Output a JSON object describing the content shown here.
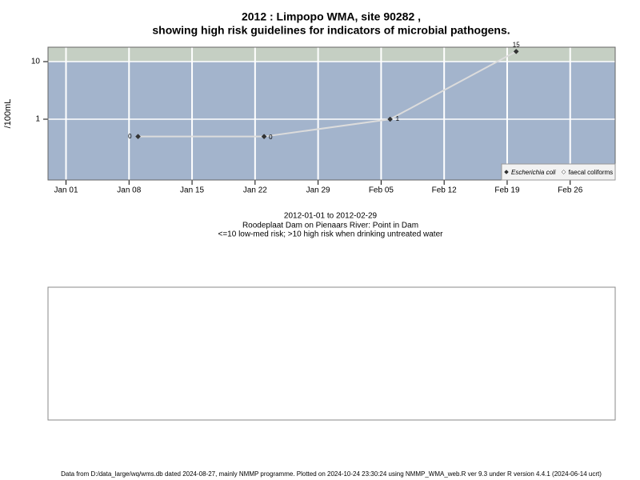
{
  "chart_data": {
    "type": "line",
    "title": "2012 : Limpopo WMA, site 90282 ,",
    "subtitle": "showing high risk guidelines for indicators of microbial pathogens.",
    "ylabel": "/100mL",
    "log_y": true,
    "grid": true,
    "threshold": 10,
    "threshold_color": "#c5cfc3",
    "background_color": "#a3b4cc",
    "line_color": "#dcdcdc",
    "legend": "lower right",
    "x": [
      "2012-01-09",
      "2012-01-23",
      "2012-02-06",
      "2012-02-20"
    ],
    "series": [
      {
        "name": "Escherichia coli",
        "color": "#333333",
        "values": [
          0.5,
          0.5,
          1,
          15
        ],
        "value_labels": [
          "0",
          "0",
          "1",
          "15"
        ]
      },
      {
        "name": "faecal coliforms",
        "color": "#ffffff",
        "values": [
          null,
          null,
          null,
          null
        ]
      }
    ],
    "xlim": [
      "2011-12-30",
      "2012-03-02"
    ],
    "xticks": [
      {
        "value": "2012-01-01",
        "label": "Jan 01"
      },
      {
        "value": "2012-01-08",
        "label": "Jan 08"
      },
      {
        "value": "2012-01-15",
        "label": "Jan 15"
      },
      {
        "value": "2012-01-22",
        "label": "Jan 22"
      },
      {
        "value": "2012-01-29",
        "label": "Jan 29"
      },
      {
        "value": "2012-02-05",
        "label": "Feb 05"
      },
      {
        "value": "2012-02-12",
        "label": "Feb 12"
      },
      {
        "value": "2012-02-19",
        "label": "Feb 19"
      },
      {
        "value": "2012-02-26",
        "label": "Feb 26"
      }
    ],
    "ylim": [
      0.088,
      17.8
    ],
    "yticks": [
      1,
      10
    ],
    "notes": [
      "2012-01-01 to 2012-02-29",
      "Roodeplaat Dam on Pienaars River: Point in Dam",
      "<=10 low-med risk; >10 high risk when drinking untreated water"
    ]
  },
  "footer": "Data from D:/data_large/wq/wms.db dated 2024-08-27, mainly NMMP programme. Plotted on 2024-10-24 23:30:24 using NMMP_WMA_web.R ver 9.3 under R version 4.4.1 (2024-06-14 ucrt)"
}
